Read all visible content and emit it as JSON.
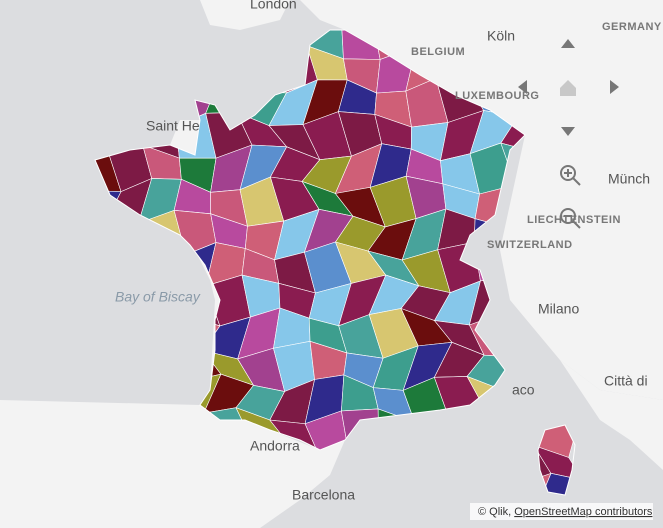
{
  "places": [
    "London",
    "Köln",
    "BELGIUM",
    "LUXEMBOURG",
    "GERMANY",
    "Saint He",
    "Bay of Biscay",
    "Münch",
    "LIECHTENSTEIN",
    "SWITZERLAND",
    "Milano",
    "Città di",
    "Andorra",
    "Barcelona",
    "aco"
  ],
  "attribution": {
    "prefix": "© Qlik,",
    "link": "OpenStreetMap contributors"
  }
}
